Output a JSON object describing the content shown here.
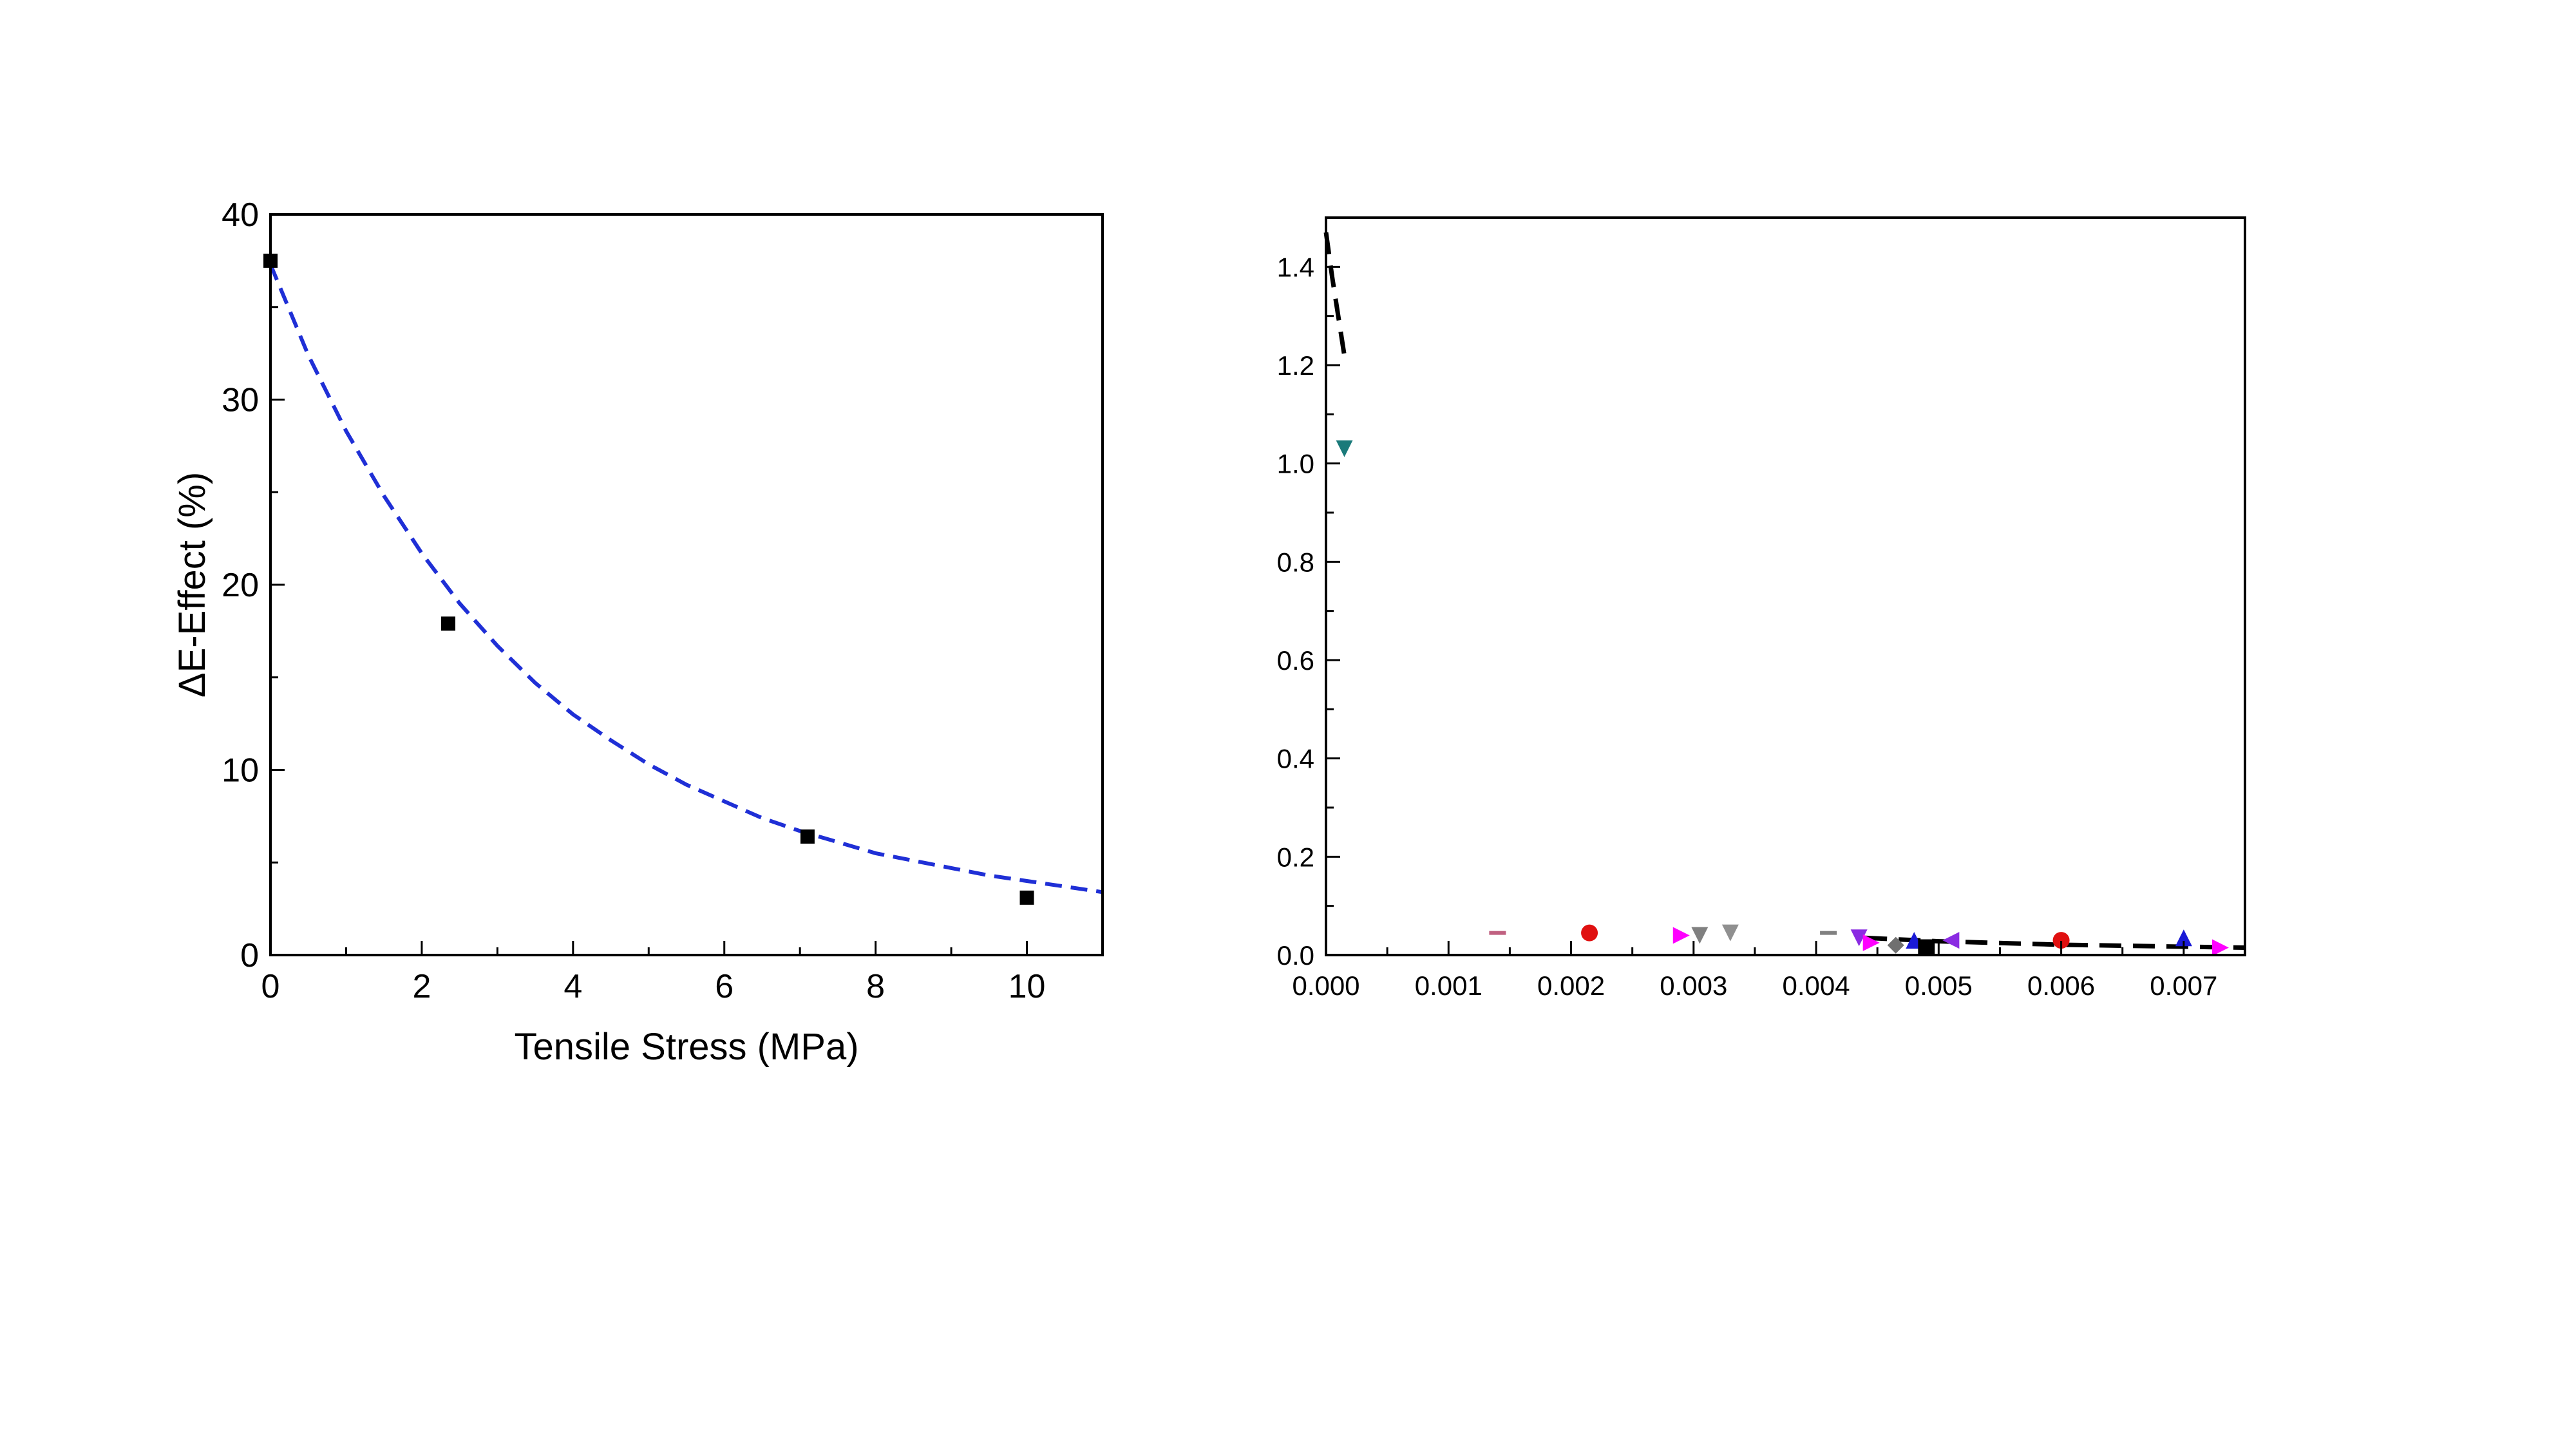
{
  "chart_data": [
    {
      "type": "scatter",
      "xlabel": "Tensile Stress (MPa)",
      "ylabel": "ΔE-Effect (%)",
      "xlim": [
        0,
        11
      ],
      "ylim": [
        0,
        40
      ],
      "xticks": [
        "0",
        "2",
        "4",
        "6",
        "8",
        "10"
      ],
      "yticks": [
        "0",
        "10",
        "20",
        "30",
        "40"
      ],
      "legend": "none",
      "grid": false,
      "series": [
        {
          "kind": "scatter",
          "marker": "square",
          "color": "#000000",
          "points": [
            [
              0,
              37.5
            ],
            [
              2.35,
              17.9
            ],
            [
              7.1,
              6.4
            ],
            [
              10,
              3.1
            ]
          ]
        },
        {
          "kind": "fit-line",
          "style": "dashed",
          "color": "#1f2fd6",
          "points": [
            [
              0,
              37.3
            ],
            [
              0.5,
              32.4
            ],
            [
              1,
              28.3
            ],
            [
              1.5,
              24.8
            ],
            [
              2,
              21.7
            ],
            [
              2.5,
              19.0
            ],
            [
              3,
              16.7
            ],
            [
              3.5,
              14.7
            ],
            [
              4,
              13.0
            ],
            [
              4.5,
              11.6
            ],
            [
              5,
              10.3
            ],
            [
              5.5,
              9.2
            ],
            [
              6,
              8.3
            ],
            [
              6.5,
              7.4
            ],
            [
              7,
              6.7
            ],
            [
              7.5,
              6.1
            ],
            [
              8,
              5.5
            ],
            [
              8.5,
              5.1
            ],
            [
              9,
              4.7
            ],
            [
              9.5,
              4.3
            ],
            [
              10,
              4.0
            ],
            [
              10.5,
              3.7
            ],
            [
              11,
              3.4
            ]
          ]
        }
      ]
    },
    {
      "type": "scatter",
      "xlabel": "",
      "ylabel": "",
      "xlim": [
        0,
        0.0075
      ],
      "ylim": [
        0,
        1.5
      ],
      "xticks": [
        "0.000",
        "0.001",
        "0.002",
        "0.003",
        "0.004",
        "0.005",
        "0.006",
        "0.007"
      ],
      "yticks": [
        "0.0",
        "0.2",
        "0.4",
        "0.6",
        "0.8",
        "1.0",
        "1.2",
        "1.4"
      ],
      "legend": "none",
      "grid": false,
      "series": [
        {
          "kind": "fit-line",
          "style": "dashed",
          "color": "#000000",
          "points": [
            [
              0.0,
              1.47
            ],
            [
              5e-05,
              1.38
            ],
            [
              0.0001,
              1.3
            ],
            [
              0.00015,
              1.22
            ],
            [
              0.0044,
              0.035
            ],
            [
              0.005,
              0.028
            ],
            [
              0.006,
              0.021
            ],
            [
              0.0075,
              0.015
            ]
          ]
        },
        {
          "kind": "scatter",
          "markers": [
            {
              "x": 0.00015,
              "y": 1.03,
              "marker": "triangle-down",
              "color": "#1a7a7a"
            },
            {
              "x": 0.0014,
              "y": 0.045,
              "marker": "dash",
              "color": "#c06080"
            },
            {
              "x": 0.00215,
              "y": 0.045,
              "marker": "circle",
              "color": "#e01010"
            },
            {
              "x": 0.0029,
              "y": 0.04,
              "marker": "triangle-right",
              "color": "#ff00ff"
            },
            {
              "x": 0.00305,
              "y": 0.04,
              "marker": "triangle-down",
              "color": "#808080"
            },
            {
              "x": 0.0033,
              "y": 0.045,
              "marker": "triangle-down",
              "color": "#909090"
            },
            {
              "x": 0.0041,
              "y": 0.045,
              "marker": "dash",
              "color": "#808080"
            },
            {
              "x": 0.00435,
              "y": 0.035,
              "marker": "triangle-down",
              "color": "#8a2be2"
            },
            {
              "x": 0.00445,
              "y": 0.025,
              "marker": "triangle-right",
              "color": "#ff00ff"
            },
            {
              "x": 0.00465,
              "y": 0.02,
              "marker": "diamond",
              "color": "#707070"
            },
            {
              "x": 0.0048,
              "y": 0.03,
              "marker": "triangle-up",
              "color": "#1a1ad6"
            },
            {
              "x": 0.0049,
              "y": 0.015,
              "marker": "square",
              "color": "#000000"
            },
            {
              "x": 0.0051,
              "y": 0.03,
              "marker": "triangle-left",
              "color": "#8a2be2"
            },
            {
              "x": 0.006,
              "y": 0.03,
              "marker": "circle",
              "color": "#e01010"
            },
            {
              "x": 0.007,
              "y": 0.035,
              "marker": "triangle-up",
              "color": "#1a1ad6"
            },
            {
              "x": 0.0073,
              "y": 0.015,
              "marker": "triangle-right",
              "color": "#ff00ff"
            }
          ]
        }
      ]
    }
  ]
}
